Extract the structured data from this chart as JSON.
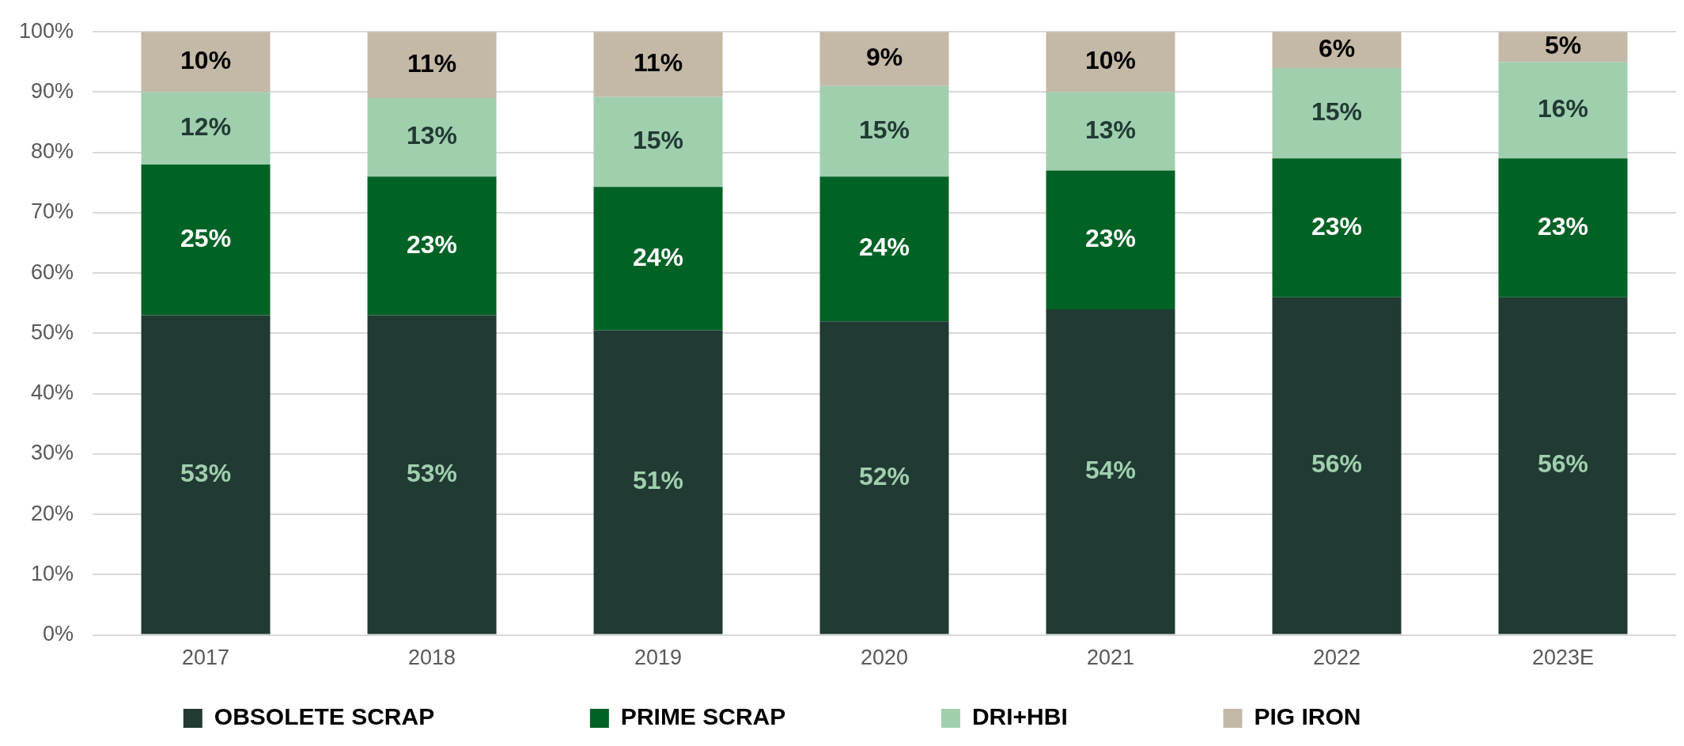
{
  "chart_data": {
    "type": "bar",
    "stacked": true,
    "categories": [
      "2017",
      "2018",
      "2019",
      "2020",
      "2021",
      "2022",
      "2023E"
    ],
    "series": [
      {
        "name": "OBSOLETE SCRAP",
        "color": "#213a33",
        "values": [
          53,
          53,
          50.5,
          52,
          54,
          56,
          56
        ],
        "value_labels": [
          "53%",
          "53%",
          "51%",
          "52%",
          "54%",
          "56%",
          "56%"
        ]
      },
      {
        "name": "PRIME SCRAP",
        "color": "#006225",
        "values": [
          25,
          23,
          23.8,
          24,
          23,
          23,
          23
        ],
        "value_labels": [
          "25%",
          "23%",
          "24%",
          "24%",
          "23%",
          "23%",
          "23%"
        ]
      },
      {
        "name": "DRI+HBI",
        "color": "#a0cfae",
        "values": [
          12,
          13,
          14.9,
          15,
          13,
          15,
          16
        ],
        "value_labels": [
          "12%",
          "13%",
          "15%",
          "15%",
          "13%",
          "15%",
          "16%"
        ]
      },
      {
        "name": "PIG IRON",
        "color": "#c4b8a6",
        "values": [
          10,
          11,
          10.8,
          9,
          10,
          6,
          5
        ],
        "value_labels": [
          "10%",
          "11%",
          "11%",
          "9%",
          "10%",
          "6%",
          "5%"
        ]
      }
    ],
    "ylim": [
      0,
      100
    ],
    "yticks": [
      {
        "value": 0,
        "label": "0%"
      },
      {
        "value": 10,
        "label": "10%"
      },
      {
        "value": 20,
        "label": "20%"
      },
      {
        "value": 30,
        "label": "30%"
      },
      {
        "value": 40,
        "label": "40%"
      },
      {
        "value": 50,
        "label": "50%"
      },
      {
        "value": 60,
        "label": "60%"
      },
      {
        "value": 70,
        "label": "70%"
      },
      {
        "value": 80,
        "label": "80%"
      },
      {
        "value": 90,
        "label": "90%"
      },
      {
        "value": 100,
        "label": "100%"
      }
    ],
    "grid": "y",
    "legend": "bottom"
  }
}
